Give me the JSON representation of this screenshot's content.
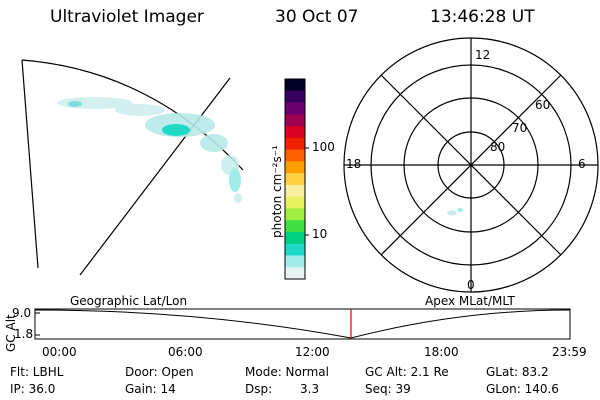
{
  "header": {
    "instrument": "Ultraviolet Imager",
    "date": "30 Oct 07",
    "time": "13:46:28 UT"
  },
  "colorbar": {
    "label": "photon cm⁻²s⁻¹",
    "ticks": [
      "100",
      "10"
    ],
    "colors": [
      "#000028",
      "#3a0060",
      "#6a0070",
      "#a00050",
      "#d80020",
      "#f02000",
      "#ff6000",
      "#ffa000",
      "#ffd040",
      "#f8f0a0",
      "#e8f060",
      "#a0f040",
      "#40e040",
      "#00d080",
      "#20d8c8",
      "#a0ece8",
      "#e8f4f4"
    ]
  },
  "polar": {
    "mlt_labels": [
      "12",
      "18",
      "6",
      "0"
    ],
    "lat_labels": [
      "60",
      "70",
      "80"
    ]
  },
  "timeline": {
    "left_label": "Geographic Lat/Lon",
    "right_label": "Apex MLat/MLT",
    "y_axis_label": "GC Alt",
    "y_ticks": [
      "9.0",
      "1.8"
    ],
    "x_ticks": [
      "00:00",
      "06:00",
      "12:00",
      "18:00",
      "23:59"
    ],
    "marker_time": "13:46"
  },
  "info": {
    "filter": "Flt: LBHL",
    "ip": "IP: 36.0",
    "door": "Door: Open",
    "gain": "Gain: 14",
    "mode": "Mode: Normal",
    "dsp_label": "Dsp:",
    "dsp_value": "3.3",
    "gc_alt": "GC Alt: 2.1 Re",
    "seq": "Seq: 39",
    "glat": "GLat:  83.2",
    "glon": "GLon: 140.6"
  }
}
